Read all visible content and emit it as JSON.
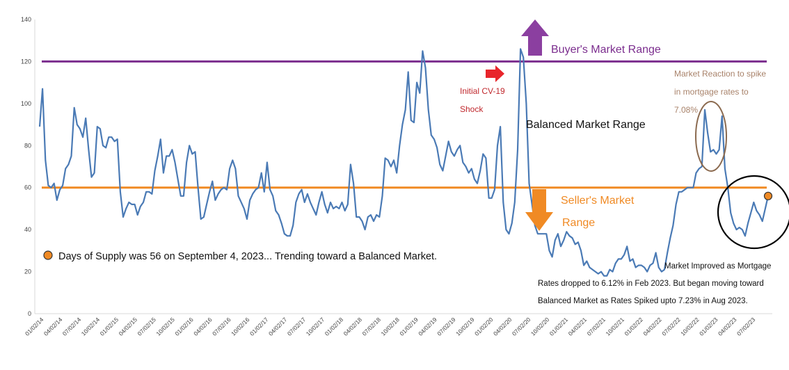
{
  "chart_data": {
    "type": "line",
    "ylim": [
      0,
      140
    ],
    "yticks": [
      0,
      20,
      40,
      60,
      80,
      100,
      120,
      140
    ],
    "tick_labels": [
      "01/02/14",
      "04/02/14",
      "07/02/14",
      "10/02/14",
      "01/02/15",
      "04/02/15",
      "07/02/15",
      "10/02/15",
      "01/02/16",
      "04/02/16",
      "07/02/16",
      "10/02/16",
      "01/02/17",
      "04/02/17",
      "07/02/17",
      "10/02/17",
      "01/02/18",
      "04/02/18",
      "07/02/18",
      "10/02/18",
      "01/02/19",
      "04/02/19",
      "07/02/19",
      "10/02/19",
      "01/02/20",
      "04/02/20",
      "07/02/20",
      "10/02/20",
      "01/02/21",
      "04/02/21",
      "07/02/21",
      "10/02/21",
      "01/02/22",
      "04/02/22",
      "07/02/22",
      "10/02/22",
      "01/02/23",
      "04/02/23",
      "07/02/23"
    ],
    "series": [
      {
        "color": "#4a7ab5",
        "values": [
          89,
          107,
          73,
          61,
          60,
          62,
          54,
          59,
          61,
          69,
          71,
          75,
          98,
          90,
          88,
          84,
          93,
          78,
          65,
          67,
          89,
          88,
          80,
          79,
          84,
          84,
          82,
          83,
          58,
          46,
          50,
          53,
          52,
          52,
          47,
          51,
          53,
          58,
          58,
          57,
          68,
          75,
          83,
          67,
          75,
          75,
          78,
          72,
          64,
          56,
          56,
          72,
          80,
          76,
          77,
          60,
          45,
          46,
          52,
          58,
          63,
          54,
          57,
          59,
          60,
          59,
          69,
          73,
          69,
          56,
          53,
          50,
          45,
          54,
          57,
          59,
          60,
          67,
          58,
          72,
          59,
          56,
          49,
          47,
          43,
          38,
          37,
          37,
          42,
          53,
          57,
          59,
          53,
          57,
          53,
          50,
          47,
          53,
          58,
          52,
          48,
          53,
          50,
          51,
          50,
          53,
          49,
          52,
          71,
          62,
          46,
          46,
          44,
          40,
          46,
          47,
          44,
          47,
          46,
          56,
          74,
          73,
          70,
          73,
          67,
          80,
          90,
          97,
          115,
          92,
          91,
          110,
          105,
          125,
          117,
          97,
          85,
          83,
          79,
          71,
          68,
          75,
          82,
          77,
          75,
          78,
          80,
          72,
          70,
          67,
          69,
          64,
          62,
          68,
          76,
          74,
          55,
          55,
          59,
          80,
          89,
          53,
          40,
          38,
          43,
          53,
          78,
          126,
          122,
          100,
          62,
          52,
          42,
          38,
          38,
          38,
          38,
          30,
          27,
          35,
          38,
          32,
          35,
          39,
          37,
          36,
          33,
          34,
          30,
          23,
          25,
          22,
          21,
          20,
          19,
          20,
          18,
          18,
          21,
          20,
          24,
          26,
          26,
          28,
          32,
          25,
          26,
          22,
          23,
          23,
          22,
          20,
          23,
          24,
          29,
          22,
          20,
          21,
          29,
          36,
          42,
          52,
          58,
          58,
          59,
          60,
          60,
          60,
          67,
          69,
          70,
          97,
          86,
          77,
          78,
          76,
          78,
          94,
          69,
          60,
          48,
          43,
          40,
          41,
          40,
          37,
          43,
          48,
          53,
          49,
          47,
          44,
          50,
          56
        ]
      }
    ],
    "reference_lines": [
      {
        "value": 120,
        "color": "#7b2d8e"
      },
      {
        "value": 60,
        "color": "#f08a24"
      }
    ],
    "highlight_point": {
      "value": 56,
      "color": "#f08a24"
    },
    "annotations": {
      "buyers": "Buyer's Market Range",
      "balanced": "Balanced Market Range",
      "sellers_line1": "Seller's Market",
      "sellers_line2": "Range",
      "cv19_line1": "Initial CV-19",
      "cv19_line2": "Shock",
      "mortgage_line1": "Market Reaction to spike",
      "mortgage_line2": "in mortgage rates to",
      "mortgage_line3": "7.08%",
      "legend_text": "Days of Supply was 56 on September 4, 2023... Trending toward a Balanced Market.",
      "improved_line1": "Market Improved as Mortgage",
      "improved_line2": "Rates dropped to 6.12% in Feb 2023.  But began moving toward",
      "improved_line3": "Balanced Market as Rates Spiked upto 7.23% in Aug 2023."
    },
    "colors": {
      "buyers_text": "#7b2d8e",
      "sellers_text": "#f08a24",
      "cv19_text": "#c0282d",
      "cv19_arrow": "#e8252b",
      "mortgage_text": "#a8826a",
      "mortgage_ellipse": "#8b6a4f",
      "text_dark": "#111111"
    }
  }
}
